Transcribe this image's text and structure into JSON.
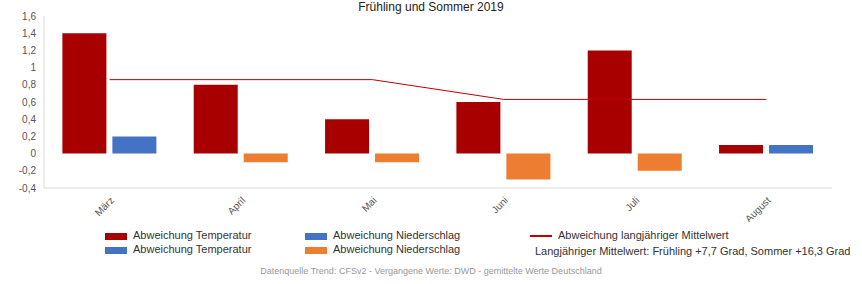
{
  "chart_data": {
    "type": "bar",
    "title": "Frühling und Sommer 2019",
    "categories": [
      "März",
      "April",
      "Mai",
      "Juni",
      "Juli",
      "August"
    ],
    "series": [
      {
        "name": "Abweichung Temperatur",
        "type": "bar",
        "color": "#a80000",
        "colors": [
          "#a80000",
          "#a80000",
          "#a80000",
          "#a80000",
          "#a80000",
          "#a80000"
        ],
        "values": [
          1.4,
          0.8,
          0.4,
          0.6,
          1.2,
          0.1
        ]
      },
      {
        "name": "Abweichung Niederschlag",
        "type": "bar",
        "color": "#4472c4",
        "colors": [
          "#4472c4",
          "#ed7d31",
          "#ed7d31",
          "#ed7d31",
          "#ed7d31",
          "#4472c4"
        ],
        "values": [
          0.2,
          -0.1,
          -0.1,
          -0.3,
          -0.2,
          0.1
        ]
      },
      {
        "name": "Abweichung langjähriger Mittelwert",
        "type": "line",
        "color": "#c00000",
        "values": [
          0.86,
          0.86,
          0.86,
          0.63,
          0.63,
          0.63
        ]
      }
    ],
    "ylim": [
      -0.4,
      1.6
    ],
    "yticks": [
      {
        "value": -0.4,
        "label": "-0,4"
      },
      {
        "value": -0.2,
        "label": "-0,2"
      },
      0,
      {
        "value": 0.2,
        "label": "0,2"
      },
      {
        "value": 0.4,
        "label": "0,4"
      },
      {
        "value": 0.6,
        "label": "0,6"
      },
      {
        "value": 0.8,
        "label": "0,8"
      },
      {
        "value": 1,
        "label": "1"
      },
      {
        "value": 1.2,
        "label": "1,2"
      },
      {
        "value": 1.4,
        "label": "1,4"
      },
      {
        "value": 1.6,
        "label": "1,6"
      }
    ],
    "grid": false,
    "legend": "bottom",
    "legend_entries": [
      {
        "name": "Abweichung Temperatur",
        "color": "#a80000",
        "marker": "bar"
      },
      {
        "name": "Abweichung Niederschlag",
        "color": "#4472c4",
        "marker": "bar"
      },
      {
        "name": "Abweichung langjähriger Mittelwert",
        "color": "#c00000",
        "marker": "line"
      },
      {
        "name": "Abweichung Temperatur",
        "color": "#4472c4",
        "marker": "bar"
      },
      {
        "name": "Abweichung Niederschlag",
        "color": "#ed7d31",
        "marker": "bar"
      }
    ],
    "footnote": "Langjähriger Mittelwert: Frühling +7,7 Grad, Sommer +16,3 Grad",
    "source": "Datenquelle Trend: CFSv2 - Vergangene Werte: DWD - gemittelte Werte Deutschland"
  }
}
